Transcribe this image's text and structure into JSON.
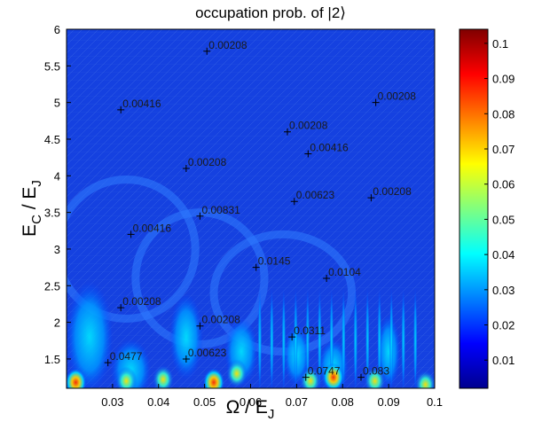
{
  "chart_data": {
    "type": "heatmap",
    "title": "occupation prob. of |2⟩",
    "xlabel": {
      "main": "Ω / E",
      "sub": "J"
    },
    "ylabel": {
      "main": "E",
      "sub1": "C",
      "sep": " / E",
      "sub2": "J"
    },
    "xlim": [
      0.02,
      0.1
    ],
    "ylim": [
      1.1,
      6
    ],
    "x_ticks": [
      "0.03",
      "0.04",
      "0.05",
      "0.06",
      "0.07",
      "0.08",
      "0.09",
      "0.1"
    ],
    "x_tick_values": [
      0.03,
      0.04,
      0.05,
      0.06,
      0.07,
      0.08,
      0.09,
      0.1
    ],
    "y_ticks": [
      "1.5",
      "2",
      "2.5",
      "3",
      "3.5",
      "4",
      "4.5",
      "5",
      "5.5",
      "6"
    ],
    "y_tick_values": [
      1.5,
      2,
      2.5,
      3,
      3.5,
      4,
      4.5,
      5,
      5.5,
      6
    ],
    "colorbar": {
      "range": [
        0.002,
        0.104
      ],
      "ticks": [
        "0.01",
        "0.02",
        "0.03",
        "0.04",
        "0.05",
        "0.06",
        "0.07",
        "0.08",
        "0.09",
        "0.1"
      ],
      "tick_values": [
        0.01,
        0.02,
        0.03,
        0.04,
        0.05,
        0.06,
        0.07,
        0.08,
        0.09,
        0.1
      ],
      "colormap": "jet"
    },
    "contour_labels": [
      {
        "text": "0.00208",
        "x": 0.0505,
        "y": 5.7
      },
      {
        "text": "0.00416",
        "x": 0.0318,
        "y": 4.9
      },
      {
        "text": "0.00208",
        "x": 0.0872,
        "y": 5.0
      },
      {
        "text": "0.00208",
        "x": 0.068,
        "y": 4.6
      },
      {
        "text": "0.00416",
        "x": 0.0725,
        "y": 4.3
      },
      {
        "text": "0.00208",
        "x": 0.046,
        "y": 4.1
      },
      {
        "text": "0.00623",
        "x": 0.0695,
        "y": 3.65
      },
      {
        "text": "0.00208",
        "x": 0.0862,
        "y": 3.7
      },
      {
        "text": "0.00831",
        "x": 0.049,
        "y": 3.45
      },
      {
        "text": "0.00416",
        "x": 0.034,
        "y": 3.2
      },
      {
        "text": "0.0145",
        "x": 0.0612,
        "y": 2.75
      },
      {
        "text": "0.0104",
        "x": 0.0765,
        "y": 2.6
      },
      {
        "text": "0.00208",
        "x": 0.0318,
        "y": 2.2
      },
      {
        "text": "0.00208",
        "x": 0.049,
        "y": 1.95
      },
      {
        "text": "0.0311",
        "x": 0.069,
        "y": 1.8
      },
      {
        "text": "0.0477",
        "x": 0.029,
        "y": 1.45
      },
      {
        "text": "0.00623",
        "x": 0.046,
        "y": 1.5
      },
      {
        "text": "0.0747",
        "x": 0.072,
        "y": 1.25
      },
      {
        "text": "0.083",
        "x": 0.084,
        "y": 1.25
      }
    ],
    "grid": false
  }
}
